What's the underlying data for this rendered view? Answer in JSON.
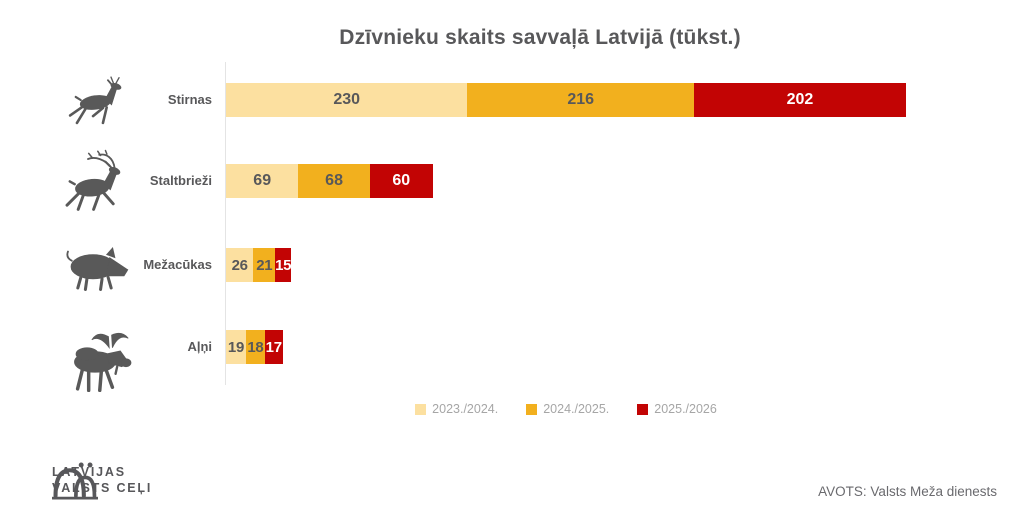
{
  "chart_data": {
    "type": "bar",
    "orientation": "horizontal",
    "stacked": true,
    "title": "Dzīvnieku skaits savvaļā Latvijā (tūkst.)",
    "xlabel": "",
    "ylabel": "",
    "xlim": [
      0,
      648
    ],
    "xmax": 648,
    "grid": false,
    "legend_position": "bottom",
    "series": [
      {
        "name": "2023./2024.",
        "color": "#FCE0A0"
      },
      {
        "name": "2024./2025.",
        "color": "#F2B01E"
      },
      {
        "name": "2025./2026",
        "color": "#C20404"
      }
    ],
    "rows": [
      {
        "label": "Stirnas",
        "icon": "roe-deer",
        "values": [
          230,
          216,
          202
        ]
      },
      {
        "label": "Staltbrieži",
        "icon": "red-deer",
        "values": [
          69,
          68,
          60
        ]
      },
      {
        "label": "Mežacūkas",
        "icon": "wild-boar",
        "values": [
          26,
          21,
          15
        ]
      },
      {
        "label": "Aļņi",
        "icon": "moose",
        "values": [
          19,
          18,
          17
        ]
      }
    ]
  },
  "footer": {
    "logo_line1": "LATVIJAS",
    "logo_line2": "VALSTS CEĻI",
    "source": "AVOTS: Valsts Meža dienests"
  },
  "colors": {
    "title_text": "#58585A",
    "value_text_dark": "#58585A",
    "value_text_light": "#FFFFFF",
    "legend_text": "#A6A6A6",
    "source_text": "#6A6A6E",
    "icon_gray": "#595959",
    "axis_line": "#E4E4E4",
    "background": "#FFFFFF"
  }
}
